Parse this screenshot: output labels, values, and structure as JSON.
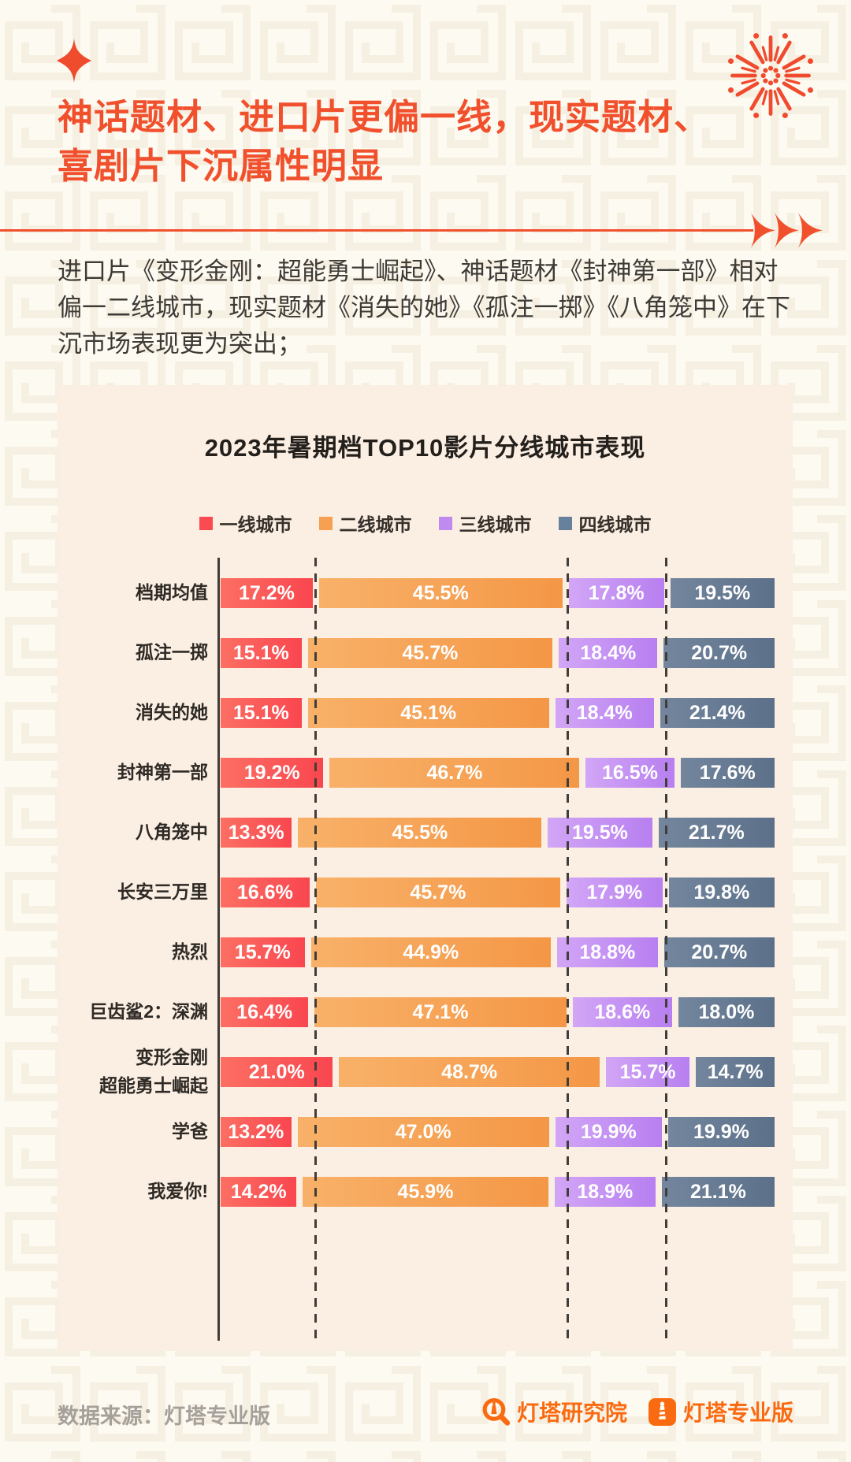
{
  "header": {
    "title_line1": "神话题材、进口片更偏一线，现实题材、",
    "title_line2": "喜剧片下沉属性明显",
    "accent_color": "#f1502d"
  },
  "intro": {
    "text": "进口片《变形金刚：超能勇士崛起》、神话题材《封神第一部》相对偏一二线城市，现实题材《消失的她》《孤注一掷》《八角笼中》在下沉市场表现更为突出；"
  },
  "chart_data": {
    "type": "bar",
    "variant": "horizontal_stacked_100pct",
    "title": "2023年暑期档TOP10影片分线城市表现",
    "unit": "%",
    "xlim": [
      0,
      100
    ],
    "legend_position": "top",
    "grid": "dashed vertical lines at 档期均值 segment boundaries (17.2 / 62.7 / 80.5)",
    "legend": [
      {
        "name": "一线城市",
        "color": "#fa4b50"
      },
      {
        "name": "二线城市",
        "color": "#f6a052"
      },
      {
        "name": "三线城市",
        "color": "#bf8bf0"
      },
      {
        "name": "四线城市",
        "color": "#67809c"
      }
    ],
    "rows": [
      {
        "label": "档期均值",
        "values": [
          17.2,
          45.5,
          17.8,
          19.5
        ]
      },
      {
        "label": "孤注一掷",
        "values": [
          15.1,
          45.7,
          18.4,
          20.7
        ]
      },
      {
        "label": "消失的她",
        "values": [
          15.1,
          45.1,
          18.4,
          21.4
        ]
      },
      {
        "label": "封神第一部",
        "values": [
          19.2,
          46.7,
          16.5,
          17.6
        ]
      },
      {
        "label": "八角笼中",
        "values": [
          13.3,
          45.5,
          19.5,
          21.7
        ]
      },
      {
        "label": "长安三万里",
        "values": [
          16.6,
          45.7,
          17.9,
          19.8
        ]
      },
      {
        "label": "热烈",
        "values": [
          15.7,
          44.9,
          18.8,
          20.7
        ]
      },
      {
        "label": "巨齿鲨2：深渊",
        "values": [
          16.4,
          47.1,
          18.6,
          18.0
        ]
      },
      {
        "label": "变形金刚\n超能勇士崛起",
        "values": [
          21.0,
          48.7,
          15.7,
          14.7
        ]
      },
      {
        "label": "学爸",
        "values": [
          13.2,
          47.0,
          19.9,
          19.9
        ]
      },
      {
        "label": "我爱你!",
        "values": [
          14.2,
          45.9,
          18.9,
          21.1
        ]
      }
    ]
  },
  "footer": {
    "source": "数据来源：灯塔专业版",
    "logo1_label": "灯塔研究院",
    "logo2_label": "灯塔专业版",
    "logo_color": "#fa6a10"
  }
}
